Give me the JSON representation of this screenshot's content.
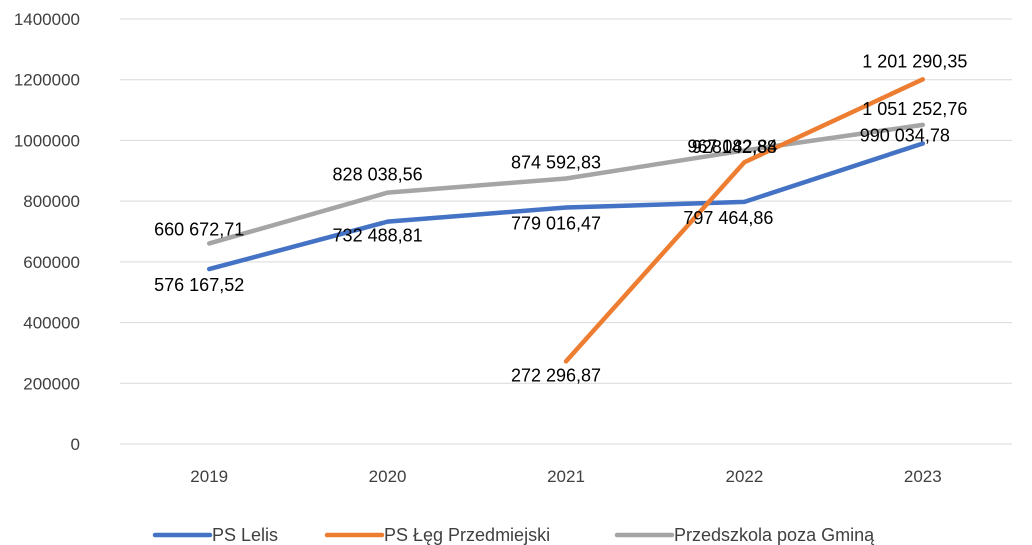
{
  "chart_data": {
    "type": "line",
    "title": "",
    "xlabel": "",
    "ylabel": "",
    "categories": [
      "2019",
      "2020",
      "2021",
      "2022",
      "2023"
    ],
    "ylim": [
      0,
      1400000
    ],
    "yticks": [
      0,
      200000,
      400000,
      600000,
      800000,
      1000000,
      1200000,
      1400000
    ],
    "ytick_labels": [
      "0",
      "200000",
      "400000",
      "600000",
      "800000",
      "1000000",
      "1200000",
      "1400000"
    ],
    "grid": true,
    "legend_position": "bottom",
    "series": [
      {
        "name": "PS Lelis",
        "color": "#4472C4",
        "values": [
          576167.52,
          732488.81,
          779016.47,
          797464.86,
          990034.78
        ],
        "labels": [
          "576 167,52",
          "732 488,81",
          "779 016,47",
          "797 464,86",
          "990 034,78"
        ]
      },
      {
        "name": "PS Łęg Przedmiejski",
        "color": "#ED7D31",
        "values": [
          null,
          null,
          272296.87,
          928142.88,
          1201290.35
        ],
        "labels": [
          null,
          null,
          "272 296,87",
          "928142,88",
          "1 201 290,35"
        ]
      },
      {
        "name": "Przedszkola poza Gminą",
        "color": "#A5A5A5",
        "values": [
          660672.71,
          828038.56,
          874592.83,
          967082.84,
          1051252.76
        ],
        "labels": [
          "660 672,71",
          "828 038,56",
          "874 592,83",
          "967 082,84",
          "1 051 252,76"
        ]
      }
    ]
  }
}
